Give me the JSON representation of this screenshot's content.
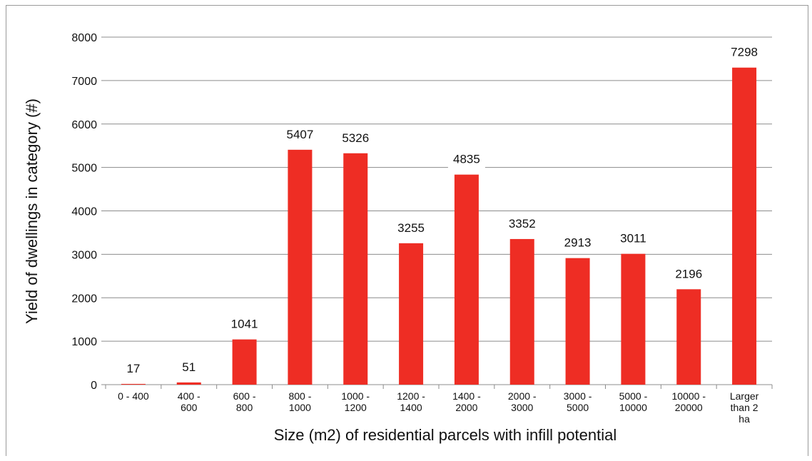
{
  "chart_data": {
    "type": "bar",
    "title": "",
    "xlabel": "Size (m2) of residential parcels with infill potential",
    "ylabel": "Yield of dwellings in category (#)",
    "ylim": [
      0,
      8000
    ],
    "yticks": [
      0,
      1000,
      2000,
      3000,
      4000,
      5000,
      6000,
      7000,
      8000
    ],
    "grid": true,
    "legend": "none",
    "bar_color": "#ee2d24",
    "categories": [
      [
        "0 - 400"
      ],
      [
        "400 -",
        "600"
      ],
      [
        "600 -",
        "800"
      ],
      [
        "800 -",
        "1000"
      ],
      [
        "1000 -",
        "1200"
      ],
      [
        "1200 -",
        "1400"
      ],
      [
        "1400 -",
        "2000"
      ],
      [
        "2000 -",
        "3000"
      ],
      [
        "3000 -",
        "5000"
      ],
      [
        "5000 -",
        "10000"
      ],
      [
        "10000 -",
        "20000"
      ],
      [
        "Larger",
        "than 2",
        "ha"
      ]
    ],
    "values": [
      17,
      51,
      1041,
      5407,
      5326,
      3255,
      4835,
      3352,
      2913,
      3011,
      2196,
      7298
    ]
  }
}
